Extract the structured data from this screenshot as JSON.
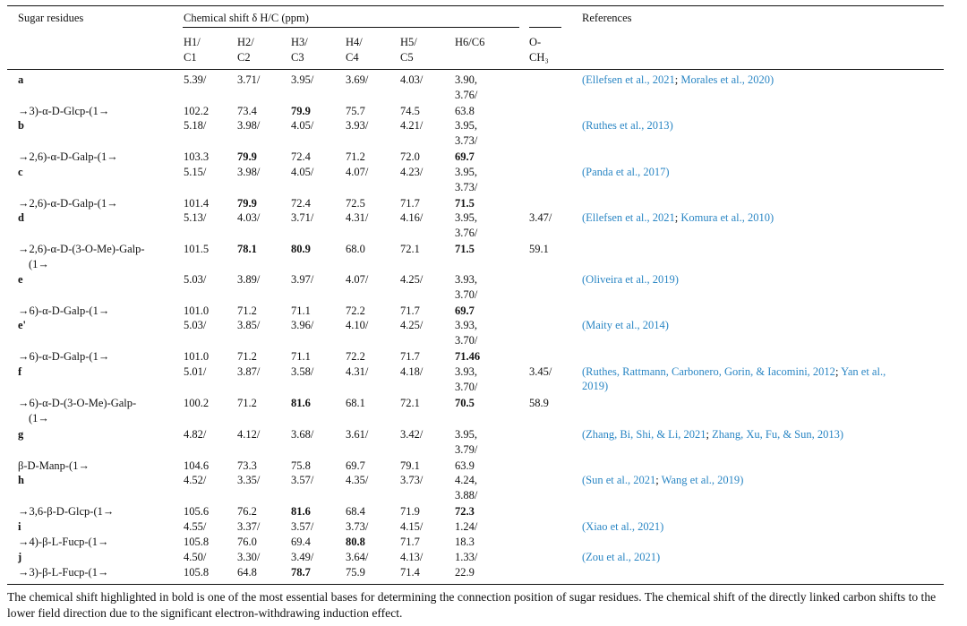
{
  "table": {
    "col_header_sugar": "Sugar residues",
    "col_header_shift": "Chemical shift δ H/C (ppm)",
    "col_header_refs": "References",
    "sub_headers": [
      {
        "top": "H1/",
        "bottom": "C1"
      },
      {
        "top": "H2/",
        "bottom": "C2"
      },
      {
        "top": "H3/",
        "bottom": "C3"
      },
      {
        "top": "H4/",
        "bottom": "C4"
      },
      {
        "top": "H5/",
        "bottom": "C5"
      },
      {
        "top": "H6/C6",
        "bottom": ""
      },
      {
        "top": "O-",
        "bottom": "CH₃"
      }
    ],
    "rows": [
      {
        "label": "a",
        "residue": [
          "→3)-α-D-Glcp-(1→"
        ],
        "h": [
          "5.39/",
          "3.71/",
          "3.95/",
          "3.69/",
          "4.03/"
        ],
        "h6": [
          "3.90,",
          "3.76/"
        ],
        "c": [
          "102.2",
          "73.4",
          "79.9",
          "75.7",
          "74.5",
          "63.8"
        ],
        "bold": [
          false,
          false,
          true,
          false,
          false,
          false
        ],
        "och3_h": "",
        "och3_c": "",
        "refs": [
          "(Ellefsen et al., 2021",
          "; ",
          "Morales et al., 2020",
          ")"
        ]
      },
      {
        "label": "b",
        "residue": [
          "→2,6)-α-D-Galp-(1→"
        ],
        "h": [
          "5.18/",
          "3.98/",
          "4.05/",
          "3.93/",
          "4.21/"
        ],
        "h6": [
          "3.95,",
          "3.73/"
        ],
        "c": [
          "103.3",
          "79.9",
          "72.4",
          "71.2",
          "72.0",
          "69.7"
        ],
        "bold": [
          false,
          true,
          false,
          false,
          false,
          true
        ],
        "och3_h": "",
        "och3_c": "",
        "refs": [
          "(Ruthes et al., 2013",
          ")"
        ]
      },
      {
        "label": "c",
        "residue": [
          "→2,6)-α-D-Galp-(1→"
        ],
        "h": [
          "5.15/",
          "3.98/",
          "4.05/",
          "4.07/",
          "4.23/"
        ],
        "h6": [
          "3.95,",
          "3.73/"
        ],
        "c": [
          "101.4",
          "79.9",
          "72.4",
          "72.5",
          "71.7",
          "71.5"
        ],
        "bold": [
          false,
          true,
          false,
          false,
          false,
          true
        ],
        "och3_h": "",
        "och3_c": "",
        "refs": [
          "(Panda et al., 2017",
          ")"
        ]
      },
      {
        "label": "d",
        "residue": [
          "→2,6)-α-D-(3-O-Me)-Galp-",
          "(1→"
        ],
        "h": [
          "5.13/",
          "4.03/",
          "3.71/",
          "4.31/",
          "4.16/"
        ],
        "h6": [
          "3.95,",
          "3.76/"
        ],
        "c": [
          "101.5",
          "78.1",
          "80.9",
          "68.0",
          "72.1",
          "71.5"
        ],
        "bold": [
          false,
          true,
          true,
          false,
          false,
          true
        ],
        "och3_h": "3.47/",
        "och3_c": "59.1",
        "refs": [
          "(Ellefsen et al., 2021",
          "; ",
          "Komura et al., 2010",
          ")"
        ]
      },
      {
        "label": "e",
        "residue": [
          "→6)-α-D-Galp-(1→"
        ],
        "h": [
          "5.03/",
          "3.89/",
          "3.97/",
          "4.07/",
          "4.25/"
        ],
        "h6": [
          "3.93,",
          "3.70/"
        ],
        "c": [
          "101.0",
          "71.2",
          "71.1",
          "72.2",
          "71.7",
          "69.7"
        ],
        "bold": [
          false,
          false,
          false,
          false,
          false,
          true
        ],
        "och3_h": "",
        "och3_c": "",
        "refs": [
          "(Oliveira et al., 2019",
          ")"
        ]
      },
      {
        "label": "e'",
        "residue": [
          "→6)-α-D-Galp-(1→"
        ],
        "h": [
          "5.03/",
          "3.85/",
          "3.96/",
          "4.10/",
          "4.25/"
        ],
        "h6": [
          "3.93,",
          "3.70/"
        ],
        "c": [
          "101.0",
          "71.2",
          "71.1",
          "72.2",
          "71.7",
          "71.46"
        ],
        "bold": [
          false,
          false,
          false,
          false,
          false,
          true
        ],
        "och3_h": "",
        "och3_c": "",
        "refs": [
          "(Maity et al., 2014",
          ")"
        ]
      },
      {
        "label": "f",
        "residue": [
          "→6)-α-D-(3-O-Me)-Galp-",
          "(1→"
        ],
        "h": [
          "5.01/",
          "3.87/",
          "3.58/",
          "4.31/",
          "4.18/"
        ],
        "h6": [
          "3.93,",
          "3.70/"
        ],
        "c": [
          "100.2",
          "71.2",
          "81.6",
          "68.1",
          "72.1",
          "70.5"
        ],
        "bold": [
          false,
          false,
          true,
          false,
          false,
          true
        ],
        "och3_h": "3.45/",
        "och3_c": "58.9",
        "refs": [
          "(Ruthes, Rattmann, Carbonero, Gorin, & Iacomini, 2012",
          "; ",
          "Yan et al.,",
          "2019",
          ")"
        ]
      },
      {
        "label": "g",
        "residue": [
          "β-D-Manp-(1→"
        ],
        "h": [
          "4.82/",
          "4.12/",
          "3.68/",
          "3.61/",
          "3.42/"
        ],
        "h6": [
          "3.95,",
          "3.79/"
        ],
        "c": [
          "104.6",
          "73.3",
          "75.8",
          "69.7",
          "79.1",
          "63.9"
        ],
        "bold": [
          false,
          false,
          false,
          false,
          false,
          false
        ],
        "och3_h": "",
        "och3_c": "",
        "refs": [
          "(Zhang, Bi, Shi, & Li, 2021",
          "; ",
          "Zhang, Xu, Fu, & Sun, 2013",
          ")"
        ]
      },
      {
        "label": "h",
        "residue": [
          "→3,6-β-D-Glcp-(1→"
        ],
        "h": [
          "4.52/",
          "3.35/",
          "3.57/",
          "4.35/",
          "3.73/"
        ],
        "h6": [
          "4.24,",
          "3.88/"
        ],
        "c": [
          "105.6",
          "76.2",
          "81.6",
          "68.4",
          "71.9",
          "72.3"
        ],
        "bold": [
          false,
          false,
          true,
          false,
          false,
          true
        ],
        "och3_h": "",
        "och3_c": "",
        "refs": [
          "(Sun et al., 2021",
          "; ",
          "Wang et al., 2019",
          ")"
        ]
      },
      {
        "label": "i",
        "residue": [
          "→4)-β-L-Fucp-(1→"
        ],
        "h": [
          "4.55/",
          "3.37/",
          "3.57/",
          "3.73/",
          "4.15/"
        ],
        "h6": [
          "1.24/"
        ],
        "c": [
          "105.8",
          "76.0",
          "69.4",
          "80.8",
          "71.7",
          "18.3"
        ],
        "bold": [
          false,
          false,
          false,
          true,
          false,
          false
        ],
        "och3_h": "",
        "och3_c": "",
        "refs": [
          "(Xiao et al., 2021",
          ")"
        ]
      },
      {
        "label": "j",
        "residue": [
          "→3)-β-L-Fucp-(1→"
        ],
        "h": [
          "4.50/",
          "3.30/",
          "3.49/",
          "3.64/",
          "4.13/"
        ],
        "h6": [
          "1.33/"
        ],
        "c": [
          "105.8",
          "64.8",
          "78.7",
          "75.9",
          "71.4",
          "22.9"
        ],
        "bold": [
          false,
          false,
          true,
          false,
          false,
          false
        ],
        "och3_h": "",
        "och3_c": "",
        "refs": [
          "(Zou et al., 2021",
          ")"
        ]
      }
    ]
  },
  "caption": "The chemical shift highlighted in bold is one of the most essential bases for determining the connection position of sugar residues. The chemical shift of the directly linked carbon shifts to the lower field direction due to the significant electron-withdrawing induction effect."
}
